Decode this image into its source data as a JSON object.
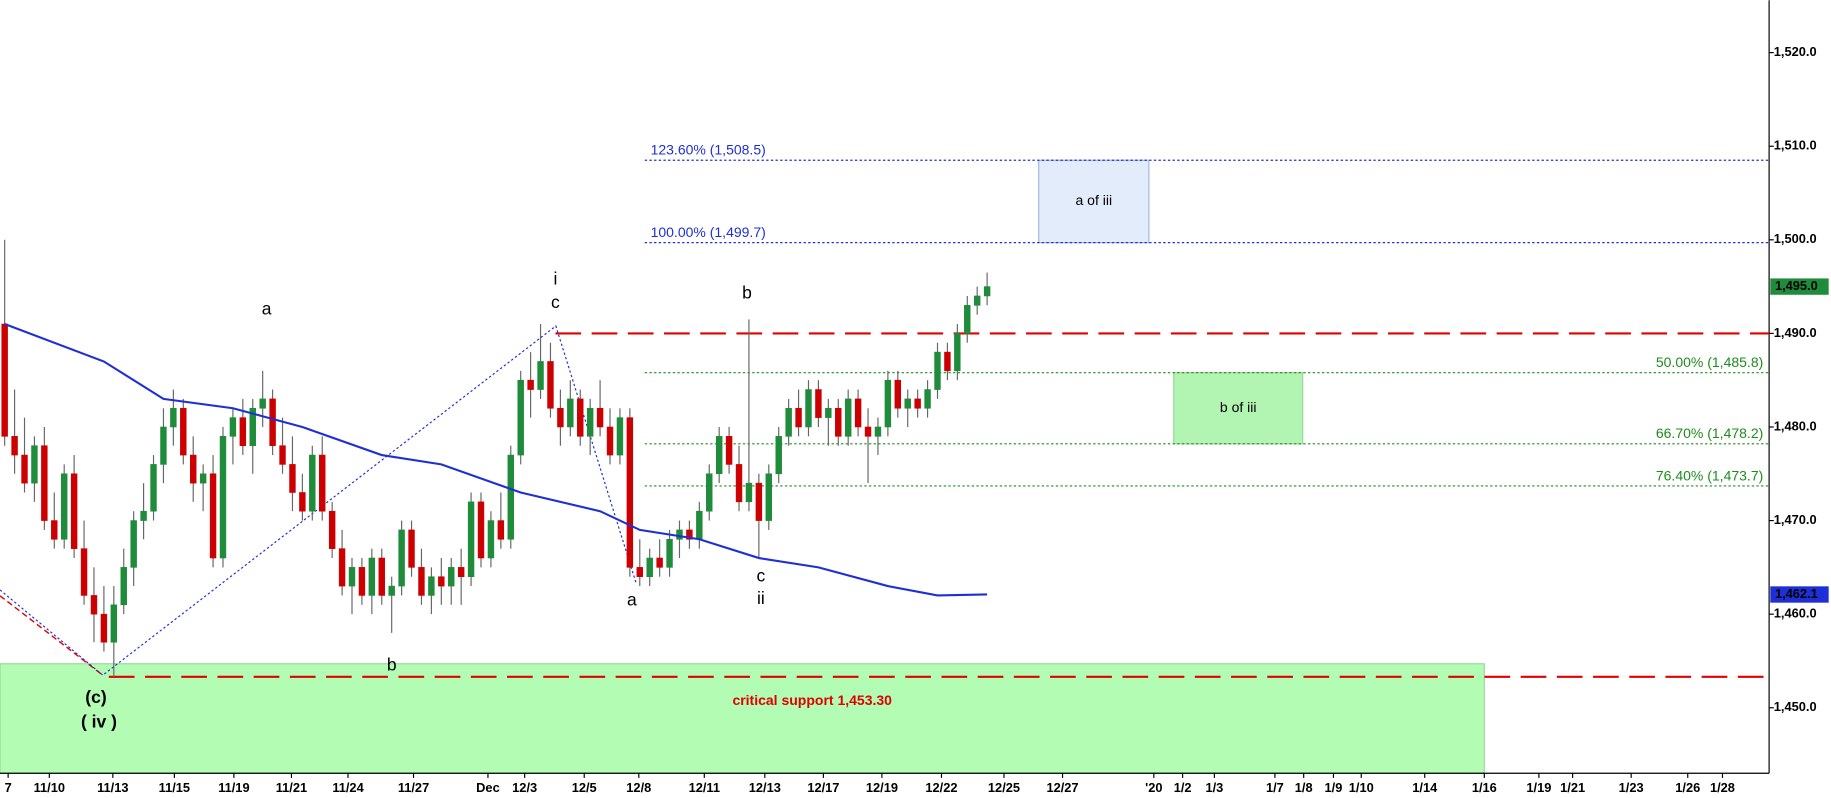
{
  "chart_data": {
    "type": "candlestick",
    "xlim": [
      -0.47,
      177.8
    ],
    "ylim": [
      1443,
      1525.6
    ],
    "xticks": [
      {
        "value": 0.35,
        "label": "7"
      },
      {
        "value": 4.5,
        "label": "11/10"
      },
      {
        "value": 10.9,
        "label": "11/13"
      },
      {
        "value": 17.1,
        "label": "11/15"
      },
      {
        "value": 23.1,
        "label": "11/19"
      },
      {
        "value": 28.9,
        "label": "11/21"
      },
      {
        "value": 34.6,
        "label": "11/24"
      },
      {
        "value": 41.2,
        "label": "11/27"
      },
      {
        "value": 48.7,
        "label": "Dec"
      },
      {
        "value": 52.4,
        "label": "12/3"
      },
      {
        "value": 58.4,
        "label": "12/5"
      },
      {
        "value": 63.9,
        "label": "12/8"
      },
      {
        "value": 70.5,
        "label": "12/11"
      },
      {
        "value": 76.6,
        "label": "12/13"
      },
      {
        "value": 82.5,
        "label": "12/17"
      },
      {
        "value": 88.4,
        "label": "12/19"
      },
      {
        "value": 94.4,
        "label": "12/22"
      },
      {
        "value": 100.7,
        "label": "12/25"
      },
      {
        "value": 106.6,
        "label": "12/27"
      },
      {
        "value": 115.8,
        "label": "'20"
      },
      {
        "value": 118.7,
        "label": "1/2"
      },
      {
        "value": 121.9,
        "label": "1/3"
      },
      {
        "value": 128,
        "label": "1/7"
      },
      {
        "value": 130.9,
        "label": "1/8"
      },
      {
        "value": 133.9,
        "label": "1/9"
      },
      {
        "value": 136.7,
        "label": "1/10"
      },
      {
        "value": 143.1,
        "label": "1/14"
      },
      {
        "value": 149.1,
        "label": "1/16"
      },
      {
        "value": 154.6,
        "label": "1/19"
      },
      {
        "value": 158,
        "label": "1/21"
      },
      {
        "value": 163.9,
        "label": "1/23"
      },
      {
        "value": 169.6,
        "label": "1/26"
      },
      {
        "value": 173.1,
        "label": "1/28"
      }
    ],
    "yticks": [
      {
        "value": 1450,
        "label": "1,450.0"
      },
      {
        "value": 1460,
        "label": "1,460.0"
      },
      {
        "value": 1470,
        "label": "1,470.0"
      },
      {
        "value": 1480,
        "label": "1,480.0"
      },
      {
        "value": 1490,
        "label": "1,490.0"
      },
      {
        "value": 1500,
        "label": "1,500.0"
      },
      {
        "value": 1510,
        "label": "1,510.0"
      },
      {
        "value": 1520,
        "label": "1,520.0"
      }
    ],
    "up_color": "#1e8c3a",
    "down_color": "#cc0000",
    "ohlc": [
      [
        1491,
        1500,
        1478,
        1479
      ],
      [
        1479,
        1484,
        1475,
        1477
      ],
      [
        1477,
        1481,
        1473,
        1474
      ],
      [
        1474,
        1479,
        1472,
        1478
      ],
      [
        1478,
        1480,
        1469,
        1470
      ],
      [
        1470,
        1473,
        1467,
        1468
      ],
      [
        1468,
        1476,
        1467,
        1475
      ],
      [
        1475,
        1477,
        1466,
        1467
      ],
      [
        1467,
        1470,
        1461,
        1462
      ],
      [
        1462,
        1465,
        1457,
        1460
      ],
      [
        1460,
        1463,
        1456,
        1457
      ],
      [
        1457,
        1463,
        1453.3,
        1461
      ],
      [
        1461,
        1467,
        1460,
        1465
      ],
      [
        1465,
        1471,
        1463,
        1470
      ],
      [
        1470,
        1474,
        1468,
        1471
      ],
      [
        1471,
        1477,
        1470,
        1476
      ],
      [
        1476,
        1482,
        1474,
        1480
      ],
      [
        1480,
        1484,
        1478,
        1482
      ],
      [
        1482,
        1483,
        1476,
        1477
      ],
      [
        1477,
        1479,
        1472,
        1474
      ],
      [
        1474,
        1476,
        1471,
        1475
      ],
      [
        1475,
        1477,
        1465,
        1466
      ],
      [
        1466,
        1480,
        1465,
        1479
      ],
      [
        1479,
        1482,
        1476,
        1481
      ],
      [
        1481,
        1483,
        1477,
        1478
      ],
      [
        1478,
        1483,
        1475,
        1482
      ],
      [
        1482,
        1486,
        1480,
        1483
      ],
      [
        1483,
        1484,
        1477,
        1478
      ],
      [
        1478,
        1481,
        1475,
        1476
      ],
      [
        1476,
        1479,
        1471,
        1473
      ],
      [
        1473,
        1475,
        1470,
        1471
      ],
      [
        1471,
        1478,
        1470,
        1477
      ],
      [
        1477,
        1479,
        1470,
        1471
      ],
      [
        1471,
        1472,
        1466,
        1467
      ],
      [
        1467,
        1469,
        1462,
        1463
      ],
      [
        1463,
        1466,
        1460,
        1465
      ],
      [
        1465,
        1466,
        1461,
        1462
      ],
      [
        1462,
        1467,
        1460,
        1466
      ],
      [
        1466,
        1467,
        1461,
        1462
      ],
      [
        1462,
        1464,
        1458,
        1463
      ],
      [
        1463,
        1470,
        1462,
        1469
      ],
      [
        1469,
        1470,
        1464,
        1465
      ],
      [
        1465,
        1467,
        1461,
        1462
      ],
      [
        1462,
        1465,
        1460,
        1464
      ],
      [
        1464,
        1466,
        1461,
        1463
      ],
      [
        1463,
        1466,
        1461,
        1465
      ],
      [
        1465,
        1467,
        1461,
        1464
      ],
      [
        1464,
        1473,
        1463,
        1472
      ],
      [
        1472,
        1473,
        1465,
        1466
      ],
      [
        1466,
        1471,
        1465,
        1470
      ],
      [
        1470,
        1473,
        1467,
        1468
      ],
      [
        1468,
        1478,
        1467,
        1477
      ],
      [
        1477,
        1486,
        1476,
        1485
      ],
      [
        1485,
        1488,
        1481,
        1484
      ],
      [
        1484,
        1491,
        1483,
        1487
      ],
      [
        1487,
        1489,
        1481,
        1482
      ],
      [
        1482,
        1484,
        1478,
        1480
      ],
      [
        1480,
        1485,
        1479,
        1483
      ],
      [
        1483,
        1484,
        1478,
        1479
      ],
      [
        1479,
        1483,
        1477,
        1482
      ],
      [
        1482,
        1485,
        1479,
        1480
      ],
      [
        1480,
        1482,
        1476,
        1477
      ],
      [
        1477,
        1482,
        1476,
        1481
      ],
      [
        1481,
        1482,
        1464,
        1465
      ],
      [
        1465,
        1468,
        1463,
        1464
      ],
      [
        1464,
        1467,
        1463,
        1466
      ],
      [
        1466,
        1468,
        1464,
        1465
      ],
      [
        1465,
        1469,
        1464,
        1468
      ],
      [
        1468,
        1470,
        1466,
        1469
      ],
      [
        1469,
        1470,
        1467,
        1468
      ],
      [
        1468,
        1472,
        1467,
        1471
      ],
      [
        1471,
        1476,
        1470,
        1475
      ],
      [
        1475,
        1480,
        1474,
        1479
      ],
      [
        1479,
        1480,
        1475,
        1476
      ],
      [
        1476,
        1478,
        1471,
        1472
      ],
      [
        1472,
        1491.5,
        1471,
        1474
      ],
      [
        1474,
        1475,
        1466,
        1470
      ],
      [
        1470,
        1476,
        1469,
        1475
      ],
      [
        1475,
        1480,
        1474,
        1479
      ],
      [
        1479,
        1483,
        1478,
        1482
      ],
      [
        1482,
        1484,
        1479,
        1480
      ],
      [
        1480,
        1485,
        1479,
        1484
      ],
      [
        1484,
        1485,
        1480,
        1481
      ],
      [
        1481,
        1483,
        1478,
        1482
      ],
      [
        1482,
        1483,
        1478,
        1479
      ],
      [
        1479,
        1484,
        1478,
        1483
      ],
      [
        1483,
        1484,
        1479,
        1480
      ],
      [
        1480,
        1482,
        1474,
        1479
      ],
      [
        1479,
        1481,
        1477,
        1480
      ],
      [
        1480,
        1486,
        1479,
        1485
      ],
      [
        1485,
        1486,
        1481,
        1482
      ],
      [
        1482,
        1484,
        1480,
        1483
      ],
      [
        1483,
        1484,
        1481,
        1482
      ],
      [
        1482,
        1485,
        1481,
        1484
      ],
      [
        1484,
        1489,
        1483,
        1488
      ],
      [
        1488,
        1489,
        1485,
        1486
      ],
      [
        1486,
        1491,
        1485,
        1490
      ],
      [
        1490,
        1494,
        1489,
        1493
      ],
      [
        1493,
        1495,
        1492,
        1494
      ],
      [
        1494,
        1496.5,
        1493,
        1495
      ]
    ],
    "moving_average": {
      "color": "#1f2fd6",
      "x": [
        0,
        10,
        16,
        23,
        30,
        38,
        44,
        52,
        60,
        64,
        70,
        76,
        82,
        89,
        94,
        99
      ],
      "values": [
        1491,
        1487,
        1483,
        1482,
        1480,
        1477,
        1476,
        1473,
        1471,
        1469,
        1468,
        1466,
        1465,
        1463,
        1462,
        1462.1
      ]
    },
    "fib_levels": [
      {
        "value": 1508.5,
        "label": "123.60% (1,508.5)",
        "color": "#1f2fd6"
      },
      {
        "value": 1499.7,
        "label": "100.00% (1,499.7)",
        "color": "#1f2fd6"
      },
      {
        "value": 1485.8,
        "label": "50.00% (1,485.8)",
        "color": "#1e8c1e"
      },
      {
        "value": 1478.2,
        "label": "66.70% (1,478.2)",
        "color": "#1e8c1e"
      },
      {
        "value": 1473.7,
        "label": "76.40% (1,473.7)",
        "color": "#1e8c1e"
      }
    ],
    "fib_x_from": 64.5,
    "resistance": {
      "value": 1490,
      "x_from": 55.5
    },
    "support": {
      "value": 1453.3,
      "label": "critical support 1,453.30",
      "x_from": 10.5,
      "zone_ylim": [
        1443,
        1454.7
      ],
      "zone_xlim": [
        -0.47,
        149.1
      ]
    },
    "boxes": [
      {
        "label": "a of iii",
        "xlim": [
          104.2,
          115.3
        ],
        "ylim": [
          1499.7,
          1508.5
        ],
        "fill": "#e3ecfb",
        "stroke": "#9fb6e6"
      },
      {
        "label": "b of iii",
        "xlim": [
          117.8,
          130.8
        ],
        "ylim": [
          1478.2,
          1485.8
        ],
        "fill": "#b2f5b2",
        "stroke": "#9ad69a"
      }
    ],
    "wave_labels": [
      {
        "text": "a",
        "x": 26.4,
        "y": 1492.5
      },
      {
        "text": "b",
        "x": 39,
        "y": 1454.5
      },
      {
        "text": "i",
        "x": 55.5,
        "y": 1495.7
      },
      {
        "text": "c",
        "x": 55.5,
        "y": 1493.2
      },
      {
        "text": "b",
        "x": 74.8,
        "y": 1494.2
      },
      {
        "text": "a",
        "x": 63.2,
        "y": 1461.4
      },
      {
        "text": "c",
        "x": 76.2,
        "y": 1464
      },
      {
        "text": "ii",
        "x": 76.2,
        "y": 1461.6
      },
      {
        "text": "(c)",
        "x": 9.2,
        "y": 1451,
        "color": "#1f2fd6"
      },
      {
        "text": "( iv )",
        "x": 9.5,
        "y": 1448.4,
        "color": "#1f2fd6"
      }
    ],
    "price_badges": [
      {
        "value": 1495,
        "label": "1,495.0",
        "color": "#1e8c3a"
      },
      {
        "value": 1462.1,
        "label": "1,462.1",
        "color": "#1f2fd6"
      }
    ]
  }
}
